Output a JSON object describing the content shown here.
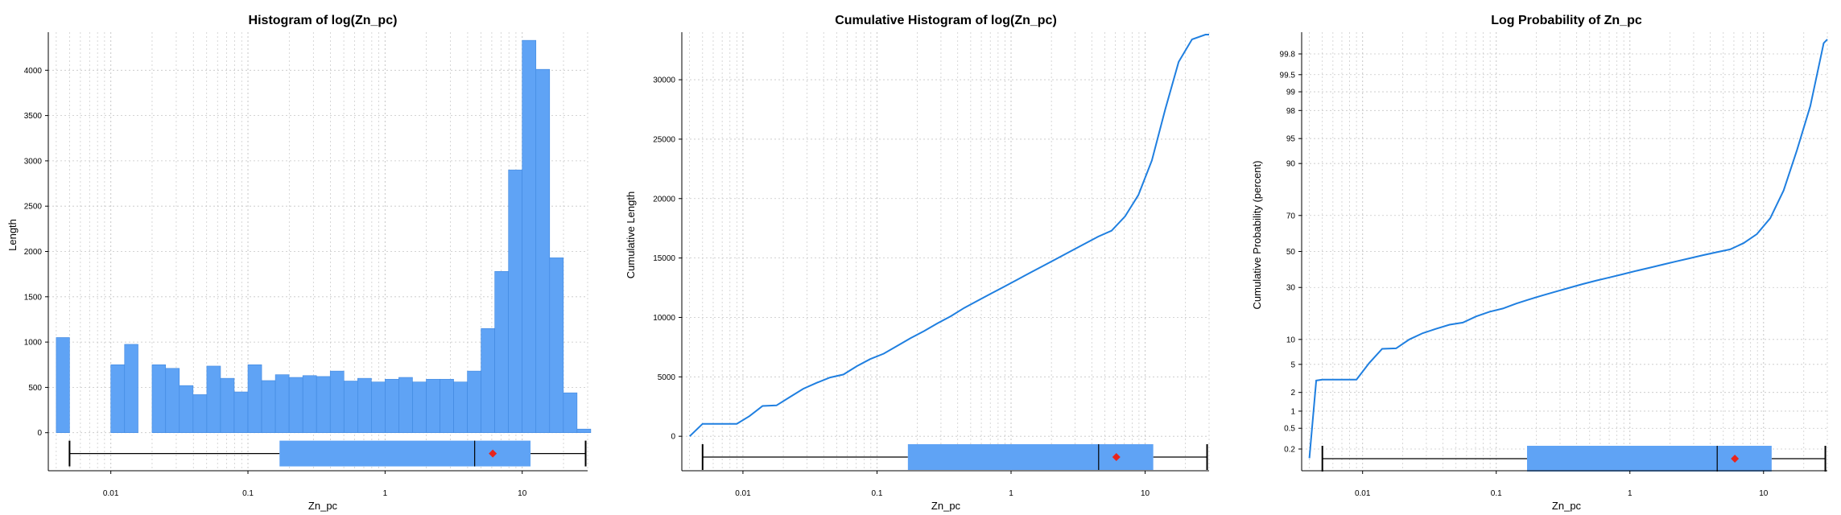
{
  "charts": [
    {
      "type": "bar",
      "title": "Histogram of log(Zn_pc)",
      "xlabel": "Zn_pc",
      "ylabel": "Length",
      "x_scale": "log",
      "xlim": [
        0.0035,
        30
      ],
      "ylim": [
        -420,
        4420
      ],
      "x_ticks": [
        {
          "v": 0.01,
          "label": "0.01"
        },
        {
          "v": 0.1,
          "label": "0.1"
        },
        {
          "v": 1,
          "label": "1"
        },
        {
          "v": 10,
          "label": "10"
        }
      ],
      "y_ticks": [
        {
          "v": 0,
          "label": "0"
        },
        {
          "v": 500,
          "label": "500"
        },
        {
          "v": 1000,
          "label": "1000"
        },
        {
          "v": 1500,
          "label": "1500"
        },
        {
          "v": 2000,
          "label": "2000"
        },
        {
          "v": 2500,
          "label": "2500"
        },
        {
          "v": 3000,
          "label": "3000"
        },
        {
          "v": 3500,
          "label": "3500"
        },
        {
          "v": 4000,
          "label": "4000"
        }
      ],
      "bar_color": "#5fa3f5",
      "bars": [
        {
          "x0": 0.004,
          "x1": 0.005,
          "y": 1050
        },
        {
          "x0": 0.01,
          "x1": 0.0126,
          "y": 750
        },
        {
          "x0": 0.0126,
          "x1": 0.0158,
          "y": 975
        },
        {
          "x0": 0.02,
          "x1": 0.0251,
          "y": 750
        },
        {
          "x0": 0.0251,
          "x1": 0.0316,
          "y": 710
        },
        {
          "x0": 0.0316,
          "x1": 0.0398,
          "y": 520
        },
        {
          "x0": 0.0398,
          "x1": 0.0501,
          "y": 420
        },
        {
          "x0": 0.0501,
          "x1": 0.0631,
          "y": 735
        },
        {
          "x0": 0.0631,
          "x1": 0.0794,
          "y": 600
        },
        {
          "x0": 0.0794,
          "x1": 0.1,
          "y": 450
        },
        {
          "x0": 0.1,
          "x1": 0.1259,
          "y": 750
        },
        {
          "x0": 0.1259,
          "x1": 0.1585,
          "y": 575
        },
        {
          "x0": 0.1585,
          "x1": 0.1995,
          "y": 640
        },
        {
          "x0": 0.1995,
          "x1": 0.2512,
          "y": 610
        },
        {
          "x0": 0.2512,
          "x1": 0.3162,
          "y": 630
        },
        {
          "x0": 0.3162,
          "x1": 0.3981,
          "y": 620
        },
        {
          "x0": 0.3981,
          "x1": 0.5012,
          "y": 680
        },
        {
          "x0": 0.5012,
          "x1": 0.631,
          "y": 570
        },
        {
          "x0": 0.631,
          "x1": 0.7943,
          "y": 600
        },
        {
          "x0": 0.7943,
          "x1": 1.0,
          "y": 560
        },
        {
          "x0": 1.0,
          "x1": 1.2589,
          "y": 590
        },
        {
          "x0": 1.2589,
          "x1": 1.5849,
          "y": 610
        },
        {
          "x0": 1.5849,
          "x1": 1.9953,
          "y": 560
        },
        {
          "x0": 1.9953,
          "x1": 2.5119,
          "y": 590
        },
        {
          "x0": 2.5119,
          "x1": 3.1623,
          "y": 590
        },
        {
          "x0": 3.1623,
          "x1": 3.9811,
          "y": 560
        },
        {
          "x0": 3.9811,
          "x1": 5.0119,
          "y": 680
        },
        {
          "x0": 5.0119,
          "x1": 6.3096,
          "y": 1150
        },
        {
          "x0": 6.3096,
          "x1": 7.9433,
          "y": 1780
        },
        {
          "x0": 7.9433,
          "x1": 10.0,
          "y": 2900
        },
        {
          "x0": 10.0,
          "x1": 12.589,
          "y": 4330
        },
        {
          "x0": 12.589,
          "x1": 15.849,
          "y": 4010
        },
        {
          "x0": 15.849,
          "x1": 19.953,
          "y": 1930
        },
        {
          "x0": 19.953,
          "x1": 25.119,
          "y": 440
        },
        {
          "x0": 25.119,
          "x1": 31.623,
          "y": 40
        }
      ],
      "boxplot": {
        "y": -230,
        "whisker_low": 0.005,
        "q1": 0.17,
        "median": 4.5,
        "q3": 11.5,
        "whisker_high": 29,
        "mean": 6.1
      }
    },
    {
      "type": "line",
      "title": "Cumulative Histogram of log(Zn_pc)",
      "xlabel": "Zn_pc",
      "ylabel": "Cumulative Length",
      "x_scale": "log",
      "xlim": [
        0.0035,
        30
      ],
      "ylim": [
        -2900,
        34000
      ],
      "x_ticks": [
        {
          "v": 0.01,
          "label": "0.01"
        },
        {
          "v": 0.1,
          "label": "0.1"
        },
        {
          "v": 1,
          "label": "1"
        },
        {
          "v": 10,
          "label": "10"
        }
      ],
      "y_ticks": [
        {
          "v": 0,
          "label": "0"
        },
        {
          "v": 5000,
          "label": "5000"
        },
        {
          "v": 10000,
          "label": "10000"
        },
        {
          "v": 15000,
          "label": "15000"
        },
        {
          "v": 20000,
          "label": "20000"
        },
        {
          "v": 25000,
          "label": "25000"
        },
        {
          "v": 30000,
          "label": "30000"
        }
      ],
      "line_color": "#1f7fe0",
      "points": [
        [
          0.004,
          0
        ],
        [
          0.005,
          1050
        ],
        [
          0.009,
          1050
        ],
        [
          0.0112,
          1700
        ],
        [
          0.014,
          2550
        ],
        [
          0.0178,
          2600
        ],
        [
          0.0224,
          3300
        ],
        [
          0.0282,
          4000
        ],
        [
          0.0355,
          4500
        ],
        [
          0.0447,
          4950
        ],
        [
          0.0562,
          5200
        ],
        [
          0.0708,
          5900
        ],
        [
          0.0891,
          6500
        ],
        [
          0.1122,
          6950
        ],
        [
          0.1413,
          7600
        ],
        [
          0.1778,
          8250
        ],
        [
          0.2239,
          8850
        ],
        [
          0.2818,
          9500
        ],
        [
          0.3548,
          10100
        ],
        [
          0.4467,
          10800
        ],
        [
          0.5623,
          11400
        ],
        [
          0.7079,
          12000
        ],
        [
          0.8913,
          12600
        ],
        [
          1.122,
          13200
        ],
        [
          1.4125,
          13800
        ],
        [
          1.7783,
          14400
        ],
        [
          2.2387,
          15000
        ],
        [
          2.8184,
          15600
        ],
        [
          3.5481,
          16200
        ],
        [
          4.4668,
          16800
        ],
        [
          5.6234,
          17300
        ],
        [
          7.0795,
          18500
        ],
        [
          8.9125,
          20300
        ],
        [
          11.22,
          23200
        ],
        [
          14.125,
          27500
        ],
        [
          17.783,
          31500
        ],
        [
          22.387,
          33400
        ],
        [
          28.184,
          33800
        ],
        [
          30.0,
          33800
        ]
      ],
      "boxplot": {
        "y": -1750,
        "whisker_low": 0.005,
        "q1": 0.17,
        "median": 4.5,
        "q3": 11.5,
        "whisker_high": 29,
        "mean": 6.1
      }
    },
    {
      "type": "line",
      "title": "Log Probability of Zn_pc",
      "xlabel": "Zn_pc",
      "ylabel": "Cumulative Probability (percent)",
      "x_scale": "log",
      "y_scale": "probit",
      "xlim": [
        0.0035,
        30
      ],
      "ylim": [
        0.07,
        99.93
      ],
      "x_ticks": [
        {
          "v": 0.01,
          "label": "0.01"
        },
        {
          "v": 0.1,
          "label": "0.1"
        },
        {
          "v": 1,
          "label": "1"
        },
        {
          "v": 10,
          "label": "10"
        }
      ],
      "y_ticks": [
        {
          "v": 0.2,
          "label": "0.2"
        },
        {
          "v": 0.5,
          "label": "0.5"
        },
        {
          "v": 1,
          "label": "1"
        },
        {
          "v": 2,
          "label": "2"
        },
        {
          "v": 5,
          "label": "5"
        },
        {
          "v": 10,
          "label": "10"
        },
        {
          "v": 30,
          "label": "30"
        },
        {
          "v": 50,
          "label": "50"
        },
        {
          "v": 70,
          "label": "70"
        },
        {
          "v": 90,
          "label": "90"
        },
        {
          "v": 95,
          "label": "95"
        },
        {
          "v": 98,
          "label": "98"
        },
        {
          "v": 99,
          "label": "99"
        },
        {
          "v": 99.5,
          "label": "99.5"
        },
        {
          "v": 99.8,
          "label": "99.8"
        }
      ],
      "line_color": "#1f7fe0",
      "points": [
        [
          0.004,
          0.13
        ],
        [
          0.0045,
          3.0
        ],
        [
          0.005,
          3.1
        ],
        [
          0.009,
          3.1
        ],
        [
          0.0112,
          5.2
        ],
        [
          0.014,
          7.8
        ],
        [
          0.0178,
          7.9
        ],
        [
          0.0224,
          10.0
        ],
        [
          0.0282,
          11.7
        ],
        [
          0.0355,
          13.0
        ],
        [
          0.0447,
          14.3
        ],
        [
          0.0562,
          15.0
        ],
        [
          0.0708,
          17.2
        ],
        [
          0.0891,
          19.0
        ],
        [
          0.1122,
          20.3
        ],
        [
          0.1413,
          22.4
        ],
        [
          0.1778,
          24.3
        ],
        [
          0.2239,
          26.2
        ],
        [
          0.2818,
          28.0
        ],
        [
          0.3548,
          29.9
        ],
        [
          0.4467,
          31.8
        ],
        [
          0.5623,
          33.6
        ],
        [
          0.7079,
          35.3
        ],
        [
          0.8913,
          37.1
        ],
        [
          1.122,
          38.9
        ],
        [
          1.4125,
          40.7
        ],
        [
          1.7783,
          42.5
        ],
        [
          2.2387,
          44.3
        ],
        [
          2.8184,
          46.1
        ],
        [
          3.5481,
          47.9
        ],
        [
          4.4668,
          49.6
        ],
        [
          5.6234,
          51.2
        ],
        [
          7.0795,
          54.8
        ],
        [
          8.9125,
          60.0
        ],
        [
          11.22,
          68.6
        ],
        [
          14.125,
          81.3
        ],
        [
          17.783,
          93.0
        ],
        [
          22.387,
          98.3
        ],
        [
          28.184,
          99.88
        ],
        [
          30.0,
          99.9
        ]
      ],
      "boxplot": {
        "whisker_low": 0.005,
        "q1": 0.17,
        "median": 4.5,
        "q3": 11.5,
        "whisker_high": 29,
        "mean": 6.1
      }
    }
  ],
  "style": {
    "bar_color": "#5fa3f5",
    "bar_edge": "#3f87de",
    "box_color": "#5fa3f5",
    "mean_color": "#e8251d",
    "grid_color": "#c6c6c6"
  }
}
